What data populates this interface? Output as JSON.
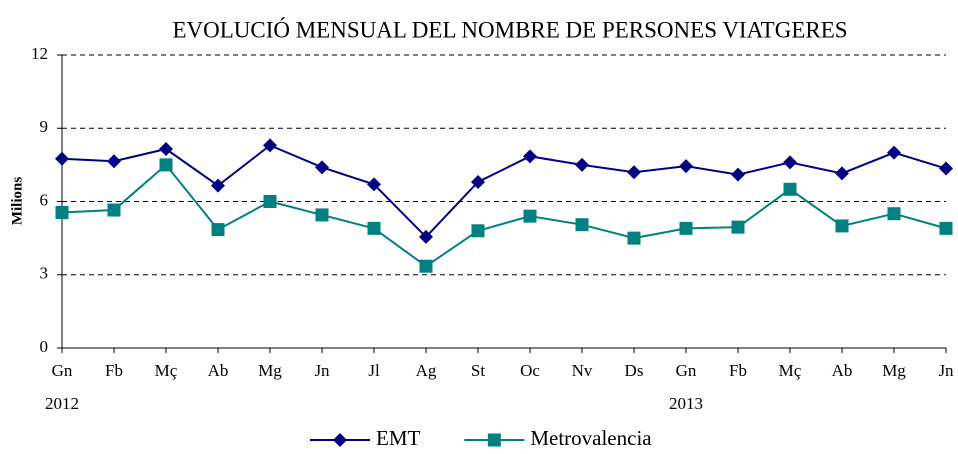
{
  "chart_data": {
    "type": "line",
    "title": "EVOLUCIÓ MENSUAL DEL NOMBRE DE PERSONES VIATGERES",
    "y_label": "Milions",
    "categories": [
      "Gn",
      "Fb",
      "Mç",
      "Ab",
      "Mg",
      "Jn",
      "Jl",
      "Ag",
      "St",
      "Oc",
      "Nv",
      "Ds",
      "Gn",
      "Fb",
      "Mç",
      "Ab",
      "Mg",
      "Jn"
    ],
    "category_groups": [
      {
        "label": "2012",
        "start": 0
      },
      {
        "label": "2013",
        "start": 12
      }
    ],
    "series": [
      {
        "name": "EMT",
        "color": "#000080",
        "marker": "diamond",
        "values": [
          7.75,
          7.65,
          8.15,
          6.65,
          8.3,
          7.4,
          6.7,
          4.55,
          6.8,
          7.85,
          7.5,
          7.2,
          7.45,
          7.1,
          7.6,
          7.15,
          8.0,
          7.35
        ]
      },
      {
        "name": "Metrovalencia",
        "color": "#008080",
        "marker": "square",
        "values": [
          5.55,
          5.65,
          7.5,
          4.85,
          6.0,
          5.45,
          4.9,
          3.35,
          4.8,
          5.4,
          5.05,
          4.5,
          4.9,
          4.95,
          6.5,
          5.0,
          5.5,
          4.9
        ]
      }
    ],
    "ylim": [
      0,
      12
    ],
    "yticks": [
      0,
      3,
      6,
      9,
      12
    ],
    "grid": true,
    "legend": "bottom"
  }
}
